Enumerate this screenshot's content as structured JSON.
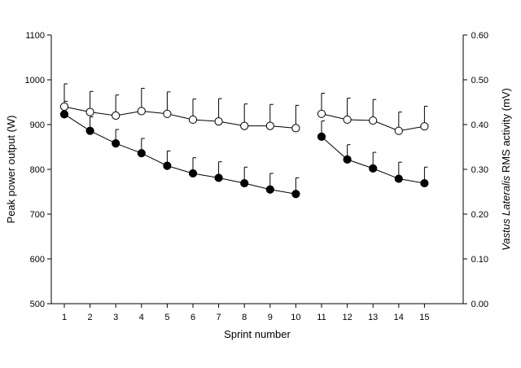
{
  "chart_data": {
    "type": "line",
    "title": "",
    "xlabel": "Sprint number",
    "ylabel_left": "Peak power output (W)",
    "ylabel_right_parts": [
      {
        "text": "Vastus Lateralis",
        "italic": true
      },
      {
        "text": " RMS activity (mV)",
        "italic": false
      }
    ],
    "x_ticks": [
      1,
      2,
      3,
      4,
      5,
      6,
      7,
      8,
      9,
      10,
      11,
      12,
      13,
      14,
      15
    ],
    "left_axis": {
      "ylim": [
        500,
        1100
      ],
      "ticks": [
        "500",
        "600",
        "700",
        "800",
        "900",
        "1000",
        "1100"
      ]
    },
    "right_axis": {
      "ylim": [
        0.0,
        0.6
      ],
      "ticks": [
        "0.00",
        "0.10",
        "0.20",
        "0.30",
        "0.40",
        "0.50",
        "0.60"
      ]
    },
    "segments": [
      [
        1,
        10
      ],
      [
        11,
        15
      ]
    ],
    "series": [
      {
        "marker": "open-circle",
        "axis": "left",
        "x": [
          1,
          2,
          3,
          4,
          5,
          6,
          7,
          8,
          9,
          10,
          11,
          12,
          13,
          14,
          15
        ],
        "values": [
          940,
          928,
          920,
          930,
          924,
          911,
          907,
          897,
          897,
          892,
          924,
          911,
          909,
          886,
          896
        ],
        "error": [
          51,
          46,
          46,
          51,
          49,
          46,
          51,
          49,
          48,
          51,
          46,
          48,
          47,
          42,
          45
        ]
      },
      {
        "marker": "filled-circle",
        "axis": "left",
        "x": [
          1,
          2,
          3,
          4,
          5,
          6,
          7,
          8,
          9,
          10,
          11,
          12,
          13,
          14,
          15
        ],
        "values": [
          923,
          886,
          858,
          836,
          808,
          791,
          781,
          769,
          755,
          745,
          873,
          822,
          802,
          779,
          769
        ],
        "error": [
          29,
          31,
          31,
          33,
          33,
          35,
          36,
          36,
          36,
          36,
          35,
          33,
          36,
          37,
          36
        ]
      }
    ]
  }
}
